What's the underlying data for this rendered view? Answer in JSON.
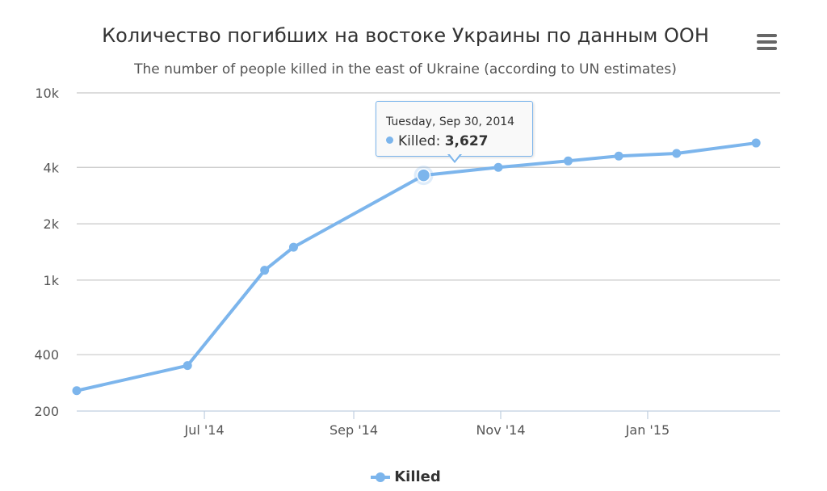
{
  "chart_data": {
    "type": "line",
    "title": "Количество погибших на востоке Украины по данным ООН",
    "subtitle": "The number of people killed in the east of Ukraine (according to UN estimates)",
    "xlabel": "",
    "ylabel": "",
    "y_scale": "log",
    "ylim": [
      200,
      10000
    ],
    "y_ticks": [
      200,
      400,
      1000,
      2000,
      4000,
      10000
    ],
    "y_tick_labels": [
      "200",
      "400",
      "1k",
      "2k",
      "4k",
      "10k"
    ],
    "xlim": [
      "2014-05-09",
      "2015-02-25"
    ],
    "x_ticks": [
      "2014-07-01",
      "2014-09-01",
      "2014-11-01",
      "2015-01-01"
    ],
    "x_tick_labels": [
      "Jul '14",
      "Sep '14",
      "Nov '14",
      "Jan '15"
    ],
    "grid": true,
    "legend_position": "bottom-center",
    "series": [
      {
        "name": "Killed",
        "color": "#7cb5ec",
        "x": [
          "2014-05-09",
          "2014-06-24",
          "2014-07-26",
          "2014-08-07",
          "2014-09-30",
          "2014-10-31",
          "2014-11-29",
          "2014-12-20",
          "2015-01-13",
          "2015-02-15"
        ],
        "y": [
          257,
          350,
          1129,
          1500,
          3627,
          4000,
          4330,
          4600,
          4750,
          5400
        ]
      }
    ]
  },
  "tooltip": {
    "date": "Tuesday, Sep 30, 2014",
    "series_label": "Killed:",
    "value": "3,627",
    "point_index": 4
  },
  "legend": {
    "label": "Killed"
  },
  "menu": {
    "icon": "hamburger-menu-icon"
  }
}
